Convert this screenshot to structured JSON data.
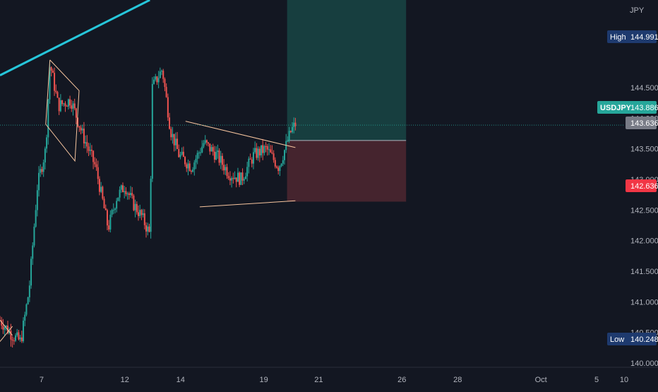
{
  "chart_data": {
    "type": "candlestick",
    "symbol": "USDJPY",
    "currency": "JPY",
    "colors": {
      "background": "#131722",
      "up": "#26a69a",
      "down": "#ef5350",
      "trendline": "#26c6da",
      "pattern": "#f7c59f",
      "profit_zone": "#1b5e57",
      "loss_zone": "#5b2b33",
      "high_low_label": "#1e3a6e",
      "symbol_label": "#26a69a",
      "stop_label": "#f23645",
      "entry_label": "#787b86"
    },
    "y_axis": {
      "range": [
        139.93,
        145.93
      ],
      "ticks": [
        {
          "value": 140.0,
          "label": "140.000"
        },
        {
          "value": 140.5,
          "label": "140.500"
        },
        {
          "value": 141.0,
          "label": "141.000"
        },
        {
          "value": 141.5,
          "label": "141.500"
        },
        {
          "value": 142.0,
          "label": "142.000"
        },
        {
          "value": 142.5,
          "label": "142.500"
        },
        {
          "value": 143.0,
          "label": "143.000"
        },
        {
          "value": 143.5,
          "label": "143.500"
        },
        {
          "value": 144.0,
          "label": "144.000"
        },
        {
          "value": 144.5,
          "label": "144.500"
        }
      ]
    },
    "x_axis": {
      "range": [
        2.5,
        10.0
      ],
      "ticks": [
        {
          "label": "7",
          "value": 3.0
        },
        {
          "label": "12",
          "value": 4.0
        },
        {
          "label": "14",
          "value": 4.67
        },
        {
          "label": "19",
          "value": 5.67
        },
        {
          "label": "21",
          "value": 6.33
        },
        {
          "label": "26",
          "value": 7.33
        },
        {
          "label": "28",
          "value": 8.0
        },
        {
          "label": "Oct",
          "value": 9.0
        },
        {
          "label": "5",
          "value": 9.67
        },
        {
          "label": "10",
          "value": 10.0
        }
      ]
    },
    "price_path": [
      [
        2.5,
        140.7
      ],
      [
        2.65,
        140.45
      ],
      [
        2.75,
        140.35
      ],
      [
        2.85,
        141.2
      ],
      [
        2.95,
        142.9
      ],
      [
        3.05,
        143.5
      ],
      [
        3.1,
        144.9
      ],
      [
        3.2,
        144.2
      ],
      [
        3.35,
        144.3
      ],
      [
        3.5,
        143.7
      ],
      [
        3.65,
        143.2
      ],
      [
        3.8,
        142.2
      ],
      [
        3.9,
        142.7
      ],
      [
        4.0,
        142.9
      ],
      [
        4.1,
        142.6
      ],
      [
        4.2,
        142.4
      ],
      [
        4.3,
        142.1
      ],
      [
        4.33,
        144.5
      ],
      [
        4.45,
        144.8
      ],
      [
        4.55,
        143.8
      ],
      [
        4.65,
        143.4
      ],
      [
        4.8,
        143.2
      ],
      [
        4.95,
        143.6
      ],
      [
        5.1,
        143.4
      ],
      [
        5.25,
        143.1
      ],
      [
        5.4,
        143.0
      ],
      [
        5.55,
        143.4
      ],
      [
        5.7,
        143.5
      ],
      [
        5.85,
        143.2
      ],
      [
        6.0,
        143.8
      ],
      [
        6.05,
        143.9
      ]
    ],
    "trendline": {
      "points": [
        [
          2.5,
          144.7
        ],
        [
          4.3,
          145.93
        ]
      ]
    },
    "patterns": [
      [
        [
          3.1,
          144.95
        ],
        [
          3.45,
          144.45
        ],
        [
          3.4,
          143.3
        ],
        [
          3.05,
          143.9
        ],
        [
          3.1,
          144.95
        ]
      ],
      [
        [
          4.73,
          143.95
        ],
        [
          6.05,
          143.52
        ]
      ],
      [
        [
          4.9,
          142.55
        ],
        [
          6.05,
          142.65
        ]
      ],
      [
        [
          2.5,
          140.7
        ],
        [
          2.65,
          140.45
        ]
      ],
      [
        [
          2.5,
          140.35
        ],
        [
          2.65,
          140.6
        ]
      ]
    ],
    "position": {
      "type": "long",
      "entry": 143.636,
      "stop": 142.636,
      "target": 145.93,
      "x_start": 5.95,
      "x_end": 7.38
    },
    "labels": {
      "currency": "JPY",
      "high_label": "High",
      "high_value": "144.991",
      "low_label": "Low",
      "low_value": "140.248",
      "symbol": "USDJPY",
      "last_price": "143.886",
      "entry": "143.636",
      "stop": "142.636"
    },
    "values": {
      "high": 144.991,
      "low": 140.248,
      "last": 143.886
    }
  }
}
